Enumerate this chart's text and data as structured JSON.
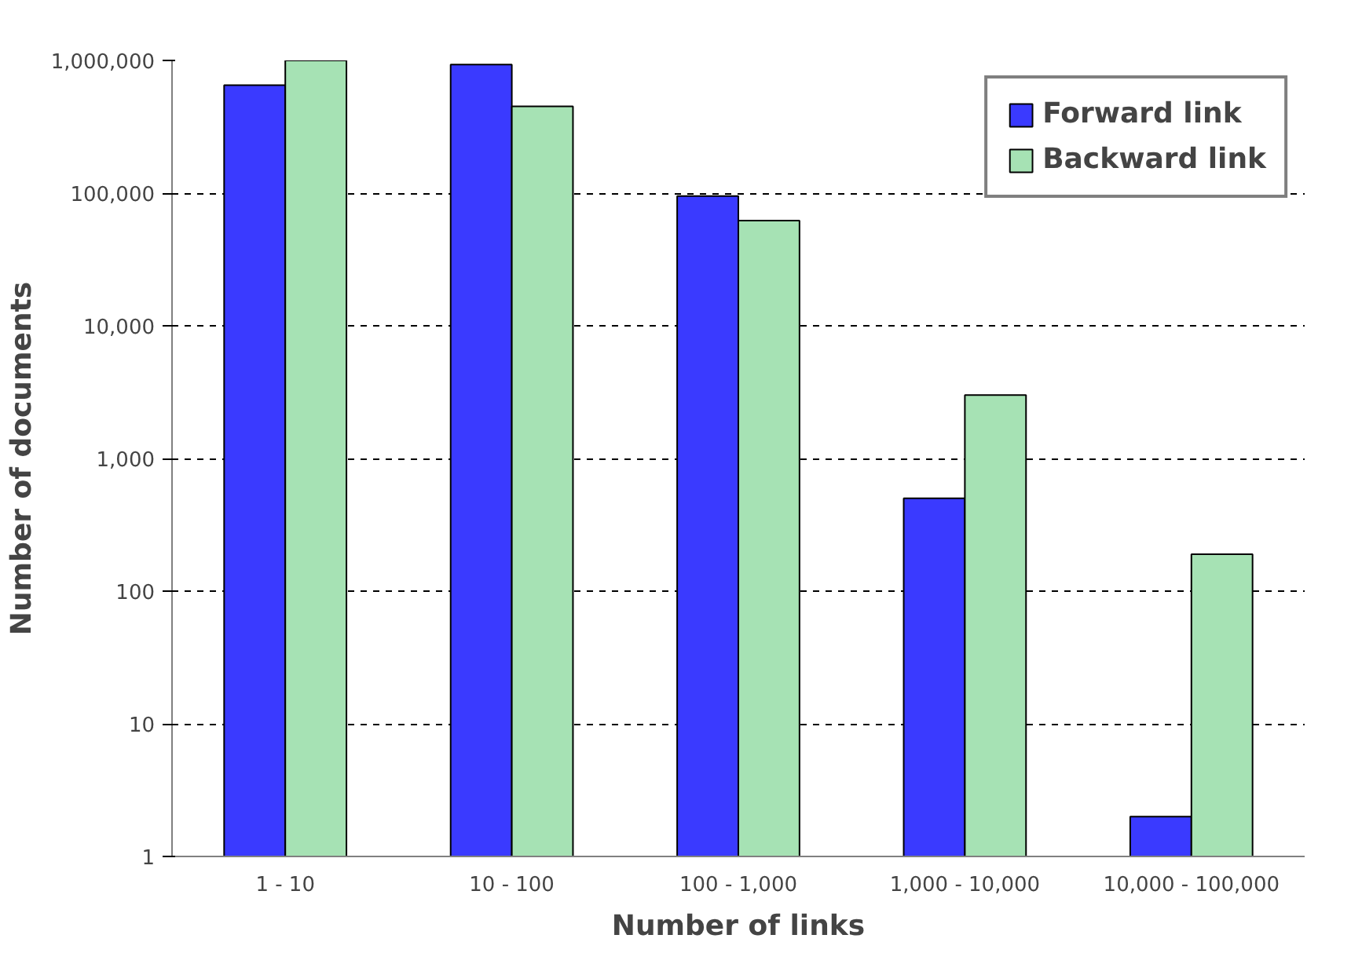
{
  "chart_data": {
    "type": "bar",
    "xlabel": "Number of links",
    "ylabel": "Number of documents",
    "categories": [
      "1 - 10",
      "10 - 100",
      "100 - 1,000",
      "1,000 - 10,000",
      "10,000 - 100,000"
    ],
    "series": [
      {
        "name": "Forward link",
        "color": "#3a3aff",
        "values": [
          650000,
          930000,
          95000,
          500,
          2
        ]
      },
      {
        "name": "Backward link",
        "color": "#a6e2b4",
        "values": [
          1000000,
          450000,
          62000,
          3000,
          190
        ]
      }
    ],
    "log": "y",
    "ylim": [
      1,
      1000000
    ],
    "yticks": [
      1,
      10,
      100,
      {
        "value": 1000,
        "label": "1,000"
      },
      {
        "value": 10000,
        "label": "10,000"
      },
      {
        "value": 100000,
        "label": "100,000"
      },
      {
        "value": 1000000,
        "label": "1,000,000"
      }
    ],
    "grid": "y",
    "legend": "top right"
  }
}
